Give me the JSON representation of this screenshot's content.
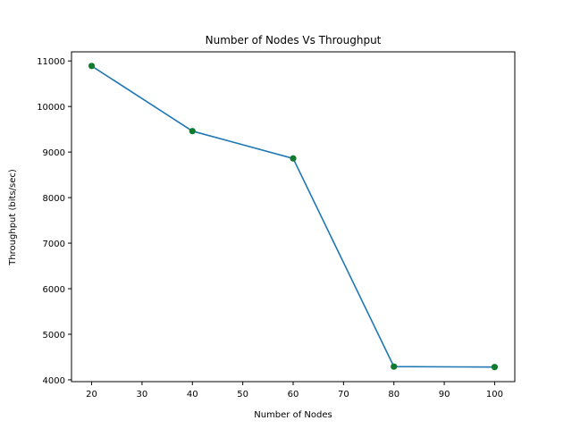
{
  "chart_data": {
    "type": "line",
    "title": "Number of Nodes Vs Throughput",
    "xlabel": "Number of Nodes",
    "ylabel": "Throughput (bits/sec)",
    "x": [
      20,
      40,
      60,
      80,
      100
    ],
    "series": [
      {
        "values": [
          10890,
          9460,
          8860,
          4290,
          4280
        ]
      }
    ],
    "xlim": [
      16,
      104
    ],
    "ylim": [
      3960,
      11200
    ],
    "xticks": [
      20,
      30,
      40,
      50,
      60,
      70,
      80,
      90,
      100
    ],
    "yticks": [
      4000,
      5000,
      6000,
      7000,
      8000,
      9000,
      10000,
      11000
    ],
    "grid": false,
    "line_color": "#1f77b4",
    "marker_color": "#117a2e"
  }
}
